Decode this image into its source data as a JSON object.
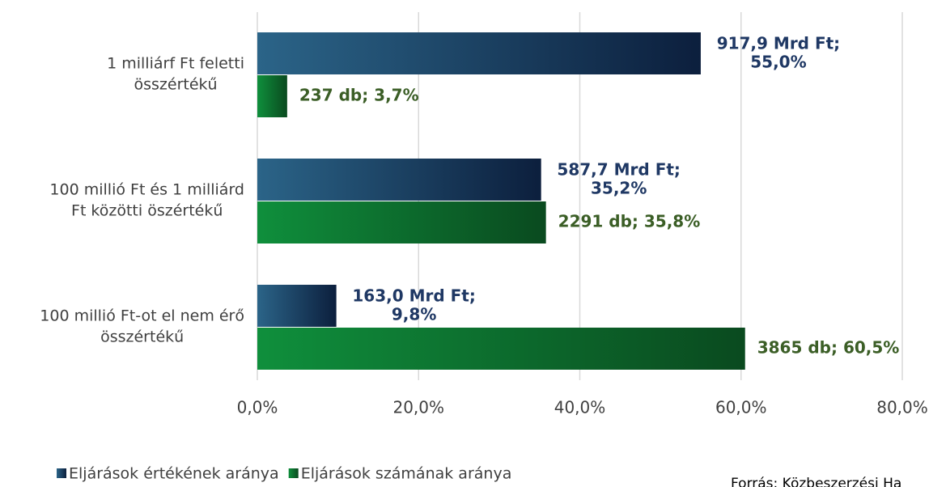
{
  "chart_data": {
    "type": "hbar",
    "categories": [
      [
        "1 milliárf Ft feletti",
        "összértékű"
      ],
      [
        "100 millió Ft és 1 milliárd",
        "Ft közötti öszértékű"
      ],
      [
        "100 millió Ft-ot el nem érő",
        "összértékű"
      ]
    ],
    "series": [
      {
        "name": "Eljárások értékének aránya",
        "color": "#2b6488",
        "color_end": "#0c1f3d",
        "label_color": "#1f3864",
        "values": [
          55.0,
          35.2,
          9.8
        ],
        "value_labels": [
          [
            "917,9 Mrd Ft;",
            "55,0%"
          ],
          [
            "587,7 Mrd Ft;",
            "35,2%"
          ],
          [
            "163,0 Mrd Ft;",
            "9,8%"
          ]
        ]
      },
      {
        "name": "Eljárások számának aránya",
        "color": "#0f8f3c",
        "color_end": "#0a4a1f",
        "label_color": "#3b5e26",
        "values": [
          3.7,
          35.8,
          60.5
        ],
        "value_labels": [
          [
            "237 db; 3,7%"
          ],
          [
            "2291 db; 35,8%"
          ],
          [
            "3865 db; 60,5%"
          ]
        ]
      }
    ],
    "xlim": [
      0,
      80
    ],
    "xticks": [
      {
        "value": 0,
        "label": "0,0%"
      },
      {
        "value": 20,
        "label": "20,0%"
      },
      {
        "value": 40,
        "label": "40,0%"
      },
      {
        "value": 60,
        "label": "60,0%"
      },
      {
        "value": 80,
        "label": "80,0%"
      }
    ],
    "grid": true,
    "legend": "bottom-left",
    "source": "Forrás: Közbeszerzési Ha"
  }
}
